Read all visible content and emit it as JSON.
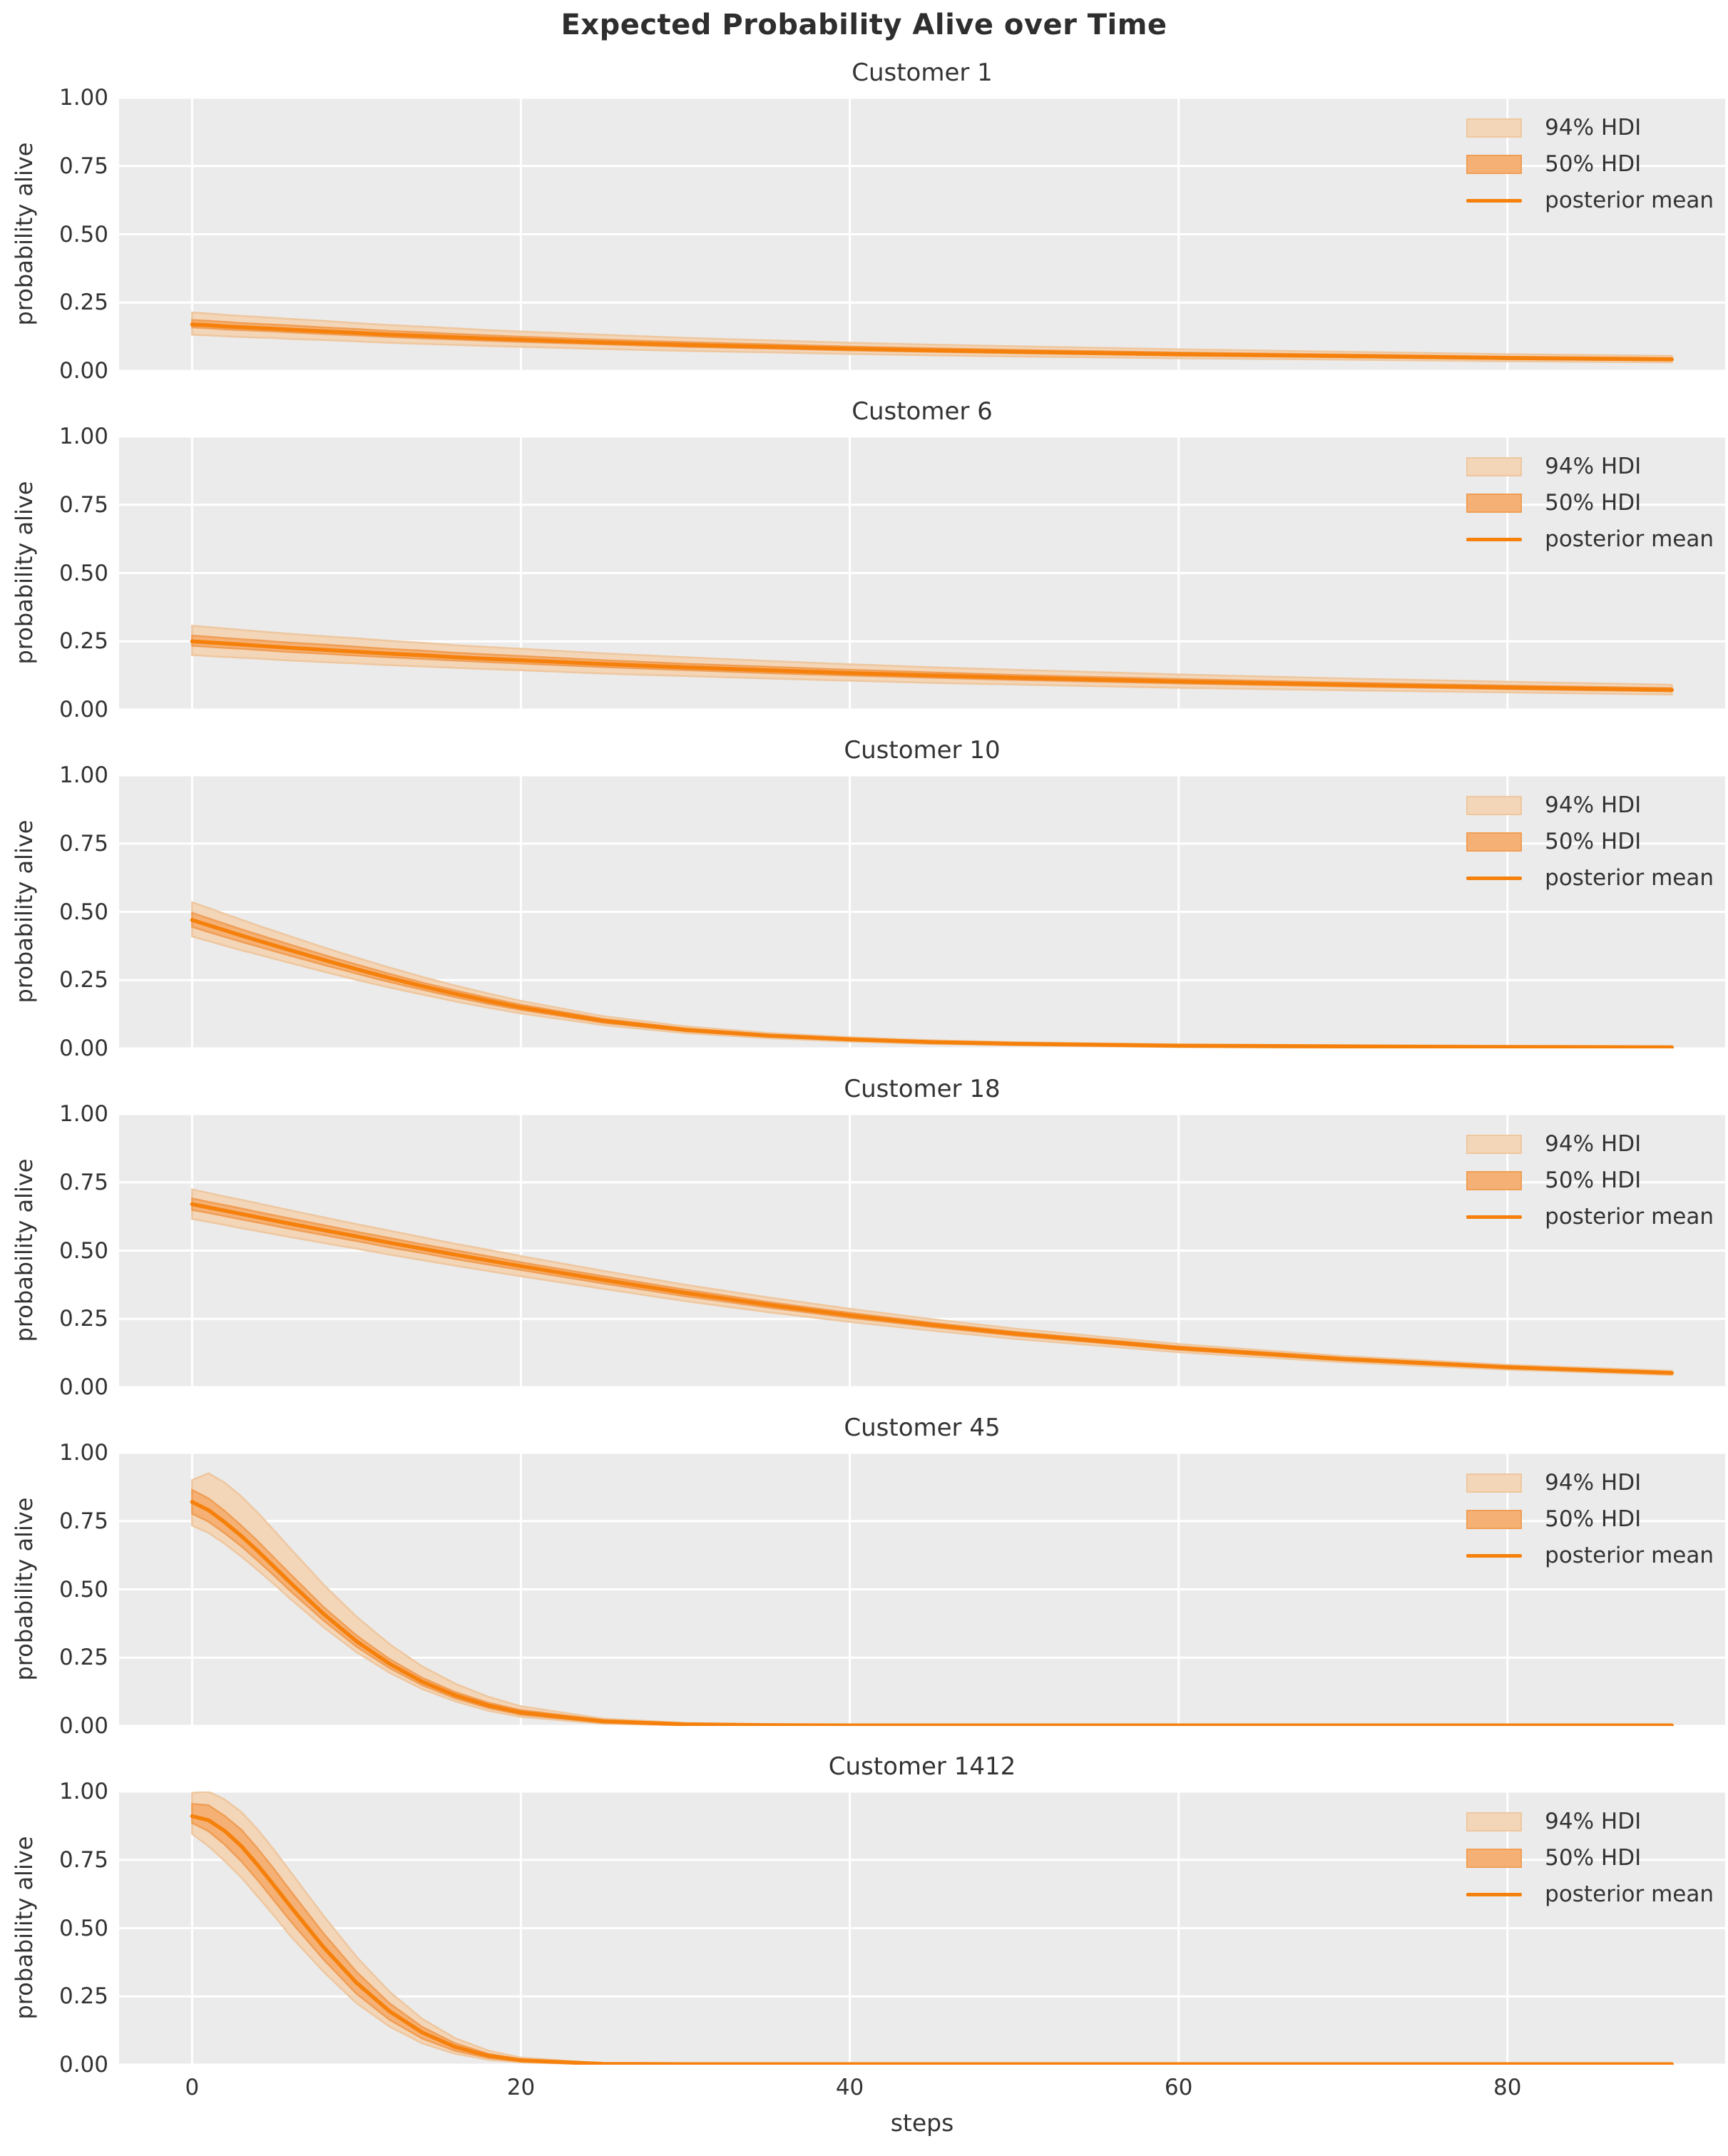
{
  "title": "Expected Probability Alive over Time",
  "axes": {
    "ylabel": "probability alive",
    "xlabel": "steps",
    "yticks": [
      "1.00",
      "0.75",
      "0.50",
      "0.25",
      "0.00"
    ],
    "ytick_values": [
      1.0,
      0.75,
      0.5,
      0.25,
      0.0
    ],
    "xticks": [
      "0",
      "20",
      "40",
      "60",
      "80"
    ],
    "xtick_values": [
      0,
      20,
      40,
      60,
      80
    ],
    "xlim": [
      -4.44,
      93.24
    ],
    "ylim": [
      0,
      1
    ],
    "grid": "on",
    "xticks_shown_on_panel": "last-only"
  },
  "legend": {
    "position": "top-right",
    "items": [
      {
        "label": "94% HDI",
        "type": "patch",
        "fill": "#f3d5b8",
        "edge": "#eec79f"
      },
      {
        "label": "50% HDI",
        "type": "patch",
        "fill": "#f5b175",
        "edge": "#f09e55"
      },
      {
        "label": "posterior mean",
        "type": "line",
        "color": "#f5810c"
      }
    ]
  },
  "colors": {
    "mean": "#f5810c",
    "band94_fill": "#f3d5b8",
    "band94_edge": "#eec79f",
    "band50_fill": "#f5b175",
    "band50_edge": "#f09e55",
    "plot_bg": "#ebebeb",
    "grid": "#ffffff",
    "text": "#333333",
    "title": "#2e2e2e"
  },
  "chart_data": [
    {
      "type": "line",
      "title": "Customer 1",
      "x": [
        0,
        1,
        2,
        3,
        4,
        5,
        6,
        8,
        10,
        12,
        14,
        16,
        18,
        20,
        25,
        30,
        35,
        40,
        45,
        50,
        60,
        70,
        80,
        90
      ],
      "mean": [
        0.17,
        0.167,
        0.163,
        0.16,
        0.157,
        0.154,
        0.151,
        0.145,
        0.139,
        0.133,
        0.128,
        0.123,
        0.118,
        0.114,
        0.104,
        0.095,
        0.088,
        0.081,
        0.075,
        0.07,
        0.061,
        0.054,
        0.047,
        0.042
      ],
      "hdi94_upper": [
        0.214,
        0.21,
        0.205,
        0.201,
        0.198,
        0.194,
        0.19,
        0.183,
        0.175,
        0.168,
        0.162,
        0.156,
        0.149,
        0.144,
        0.132,
        0.121,
        0.112,
        0.103,
        0.096,
        0.09,
        0.079,
        0.07,
        0.061,
        0.055
      ],
      "hdi94_lower": [
        0.132,
        0.13,
        0.127,
        0.124,
        0.122,
        0.12,
        0.117,
        0.113,
        0.108,
        0.103,
        0.099,
        0.095,
        0.091,
        0.088,
        0.08,
        0.073,
        0.068,
        0.062,
        0.057,
        0.053,
        0.046,
        0.041,
        0.035,
        0.031
      ],
      "hdi50_upper": [
        0.186,
        0.183,
        0.179,
        0.175,
        0.172,
        0.169,
        0.166,
        0.159,
        0.153,
        0.146,
        0.141,
        0.135,
        0.13,
        0.125,
        0.114,
        0.105,
        0.097,
        0.089,
        0.083,
        0.077,
        0.067,
        0.06,
        0.052,
        0.047
      ],
      "hdi50_lower": [
        0.159,
        0.156,
        0.152,
        0.149,
        0.147,
        0.144,
        0.141,
        0.135,
        0.13,
        0.124,
        0.119,
        0.115,
        0.11,
        0.106,
        0.097,
        0.088,
        0.082,
        0.075,
        0.07,
        0.065,
        0.056,
        0.05,
        0.043,
        0.038
      ]
    },
    {
      "type": "line",
      "title": "Customer 6",
      "x": [
        0,
        1,
        2,
        3,
        4,
        5,
        6,
        8,
        10,
        12,
        14,
        16,
        18,
        20,
        25,
        30,
        35,
        40,
        45,
        50,
        60,
        70,
        80,
        90
      ],
      "mean": [
        0.25,
        0.246,
        0.242,
        0.238,
        0.234,
        0.23,
        0.226,
        0.219,
        0.212,
        0.205,
        0.199,
        0.192,
        0.186,
        0.181,
        0.167,
        0.155,
        0.144,
        0.134,
        0.125,
        0.117,
        0.103,
        0.091,
        0.081,
        0.072
      ],
      "hdi94_upper": [
        0.307,
        0.302,
        0.297,
        0.292,
        0.287,
        0.282,
        0.277,
        0.269,
        0.261,
        0.252,
        0.245,
        0.236,
        0.229,
        0.223,
        0.206,
        0.192,
        0.178,
        0.166,
        0.155,
        0.146,
        0.129,
        0.114,
        0.102,
        0.091
      ],
      "hdi94_lower": [
        0.2,
        0.196,
        0.193,
        0.19,
        0.187,
        0.183,
        0.18,
        0.174,
        0.169,
        0.163,
        0.158,
        0.153,
        0.148,
        0.144,
        0.132,
        0.123,
        0.114,
        0.106,
        0.098,
        0.092,
        0.08,
        0.071,
        0.063,
        0.055
      ],
      "hdi50_upper": [
        0.271,
        0.267,
        0.262,
        0.258,
        0.254,
        0.249,
        0.245,
        0.238,
        0.23,
        0.222,
        0.216,
        0.208,
        0.202,
        0.196,
        0.181,
        0.168,
        0.157,
        0.146,
        0.136,
        0.127,
        0.112,
        0.099,
        0.088,
        0.079
      ],
      "hdi50_lower": [
        0.234,
        0.23,
        0.226,
        0.223,
        0.219,
        0.215,
        0.211,
        0.205,
        0.198,
        0.192,
        0.186,
        0.18,
        0.174,
        0.169,
        0.156,
        0.145,
        0.134,
        0.125,
        0.117,
        0.109,
        0.096,
        0.085,
        0.075,
        0.067
      ]
    },
    {
      "type": "line",
      "title": "Customer 10",
      "x": [
        0,
        1,
        2,
        3,
        4,
        5,
        6,
        8,
        10,
        12,
        14,
        16,
        18,
        20,
        25,
        30,
        35,
        40,
        45,
        50,
        60,
        70,
        80,
        90
      ],
      "mean": [
        0.47,
        0.451,
        0.432,
        0.413,
        0.395,
        0.377,
        0.359,
        0.324,
        0.29,
        0.258,
        0.228,
        0.2,
        0.174,
        0.15,
        0.101,
        0.068,
        0.047,
        0.033,
        0.023,
        0.017,
        0.01,
        0.007,
        0.005,
        0.004
      ],
      "hdi94_upper": [
        0.535,
        0.514,
        0.492,
        0.471,
        0.45,
        0.43,
        0.41,
        0.37,
        0.332,
        0.296,
        0.262,
        0.23,
        0.201,
        0.174,
        0.118,
        0.081,
        0.057,
        0.041,
        0.03,
        0.023,
        0.015,
        0.012,
        0.01,
        0.008
      ],
      "hdi94_lower": [
        0.41,
        0.393,
        0.376,
        0.359,
        0.344,
        0.328,
        0.312,
        0.281,
        0.251,
        0.223,
        0.197,
        0.172,
        0.149,
        0.128,
        0.085,
        0.056,
        0.037,
        0.025,
        0.016,
        0.011,
        0.005,
        0.002,
        0.001,
        0.001
      ],
      "hdi50_upper": [
        0.496,
        0.476,
        0.456,
        0.436,
        0.417,
        0.398,
        0.379,
        0.342,
        0.307,
        0.273,
        0.241,
        0.212,
        0.185,
        0.16,
        0.108,
        0.073,
        0.051,
        0.037,
        0.026,
        0.02,
        0.013,
        0.009,
        0.007,
        0.006
      ],
      "hdi50_lower": [
        0.445,
        0.426,
        0.408,
        0.39,
        0.373,
        0.356,
        0.339,
        0.306,
        0.274,
        0.243,
        0.215,
        0.188,
        0.163,
        0.141,
        0.094,
        0.063,
        0.043,
        0.029,
        0.02,
        0.014,
        0.008,
        0.005,
        0.003,
        0.002
      ]
    },
    {
      "type": "line",
      "title": "Customer 18",
      "x": [
        0,
        1,
        2,
        3,
        4,
        5,
        6,
        8,
        10,
        12,
        14,
        16,
        18,
        20,
        25,
        30,
        35,
        40,
        45,
        50,
        60,
        70,
        80,
        90
      ],
      "mean": [
        0.67,
        0.658,
        0.646,
        0.634,
        0.622,
        0.61,
        0.598,
        0.575,
        0.552,
        0.529,
        0.507,
        0.485,
        0.464,
        0.443,
        0.393,
        0.345,
        0.302,
        0.263,
        0.228,
        0.196,
        0.143,
        0.103,
        0.073,
        0.052
      ],
      "hdi94_upper": [
        0.724,
        0.711,
        0.698,
        0.686,
        0.673,
        0.66,
        0.647,
        0.622,
        0.597,
        0.573,
        0.549,
        0.525,
        0.503,
        0.48,
        0.426,
        0.375,
        0.329,
        0.287,
        0.249,
        0.215,
        0.158,
        0.114,
        0.082,
        0.06
      ],
      "hdi94_lower": [
        0.616,
        0.605,
        0.594,
        0.582,
        0.571,
        0.56,
        0.549,
        0.528,
        0.507,
        0.485,
        0.465,
        0.445,
        0.425,
        0.406,
        0.36,
        0.315,
        0.275,
        0.239,
        0.207,
        0.177,
        0.128,
        0.091,
        0.064,
        0.044
      ],
      "hdi50_upper": [
        0.691,
        0.678,
        0.666,
        0.654,
        0.641,
        0.629,
        0.617,
        0.593,
        0.569,
        0.546,
        0.523,
        0.501,
        0.479,
        0.457,
        0.406,
        0.357,
        0.312,
        0.272,
        0.236,
        0.203,
        0.149,
        0.108,
        0.077,
        0.055
      ],
      "hdi50_lower": [
        0.649,
        0.638,
        0.626,
        0.614,
        0.603,
        0.591,
        0.579,
        0.557,
        0.535,
        0.512,
        0.491,
        0.469,
        0.449,
        0.429,
        0.38,
        0.333,
        0.292,
        0.254,
        0.22,
        0.189,
        0.137,
        0.098,
        0.069,
        0.049
      ]
    },
    {
      "type": "line",
      "title": "Customer 45",
      "x": [
        0,
        1,
        2,
        3,
        4,
        5,
        6,
        8,
        10,
        12,
        14,
        16,
        18,
        20,
        25,
        30,
        35,
        40,
        45,
        50,
        60,
        70,
        80,
        90
      ],
      "mean": [
        0.82,
        0.79,
        0.745,
        0.695,
        0.64,
        0.582,
        0.523,
        0.41,
        0.31,
        0.228,
        0.162,
        0.112,
        0.075,
        0.049,
        0.017,
        0.006,
        0.003,
        0.002,
        0.002,
        0.002,
        0.002,
        0.002,
        0.002,
        0.002
      ],
      "hdi94_upper": [
        0.9,
        0.925,
        0.89,
        0.84,
        0.78,
        0.715,
        0.648,
        0.517,
        0.4,
        0.3,
        0.218,
        0.155,
        0.107,
        0.072,
        0.027,
        0.011,
        0.005,
        0.003,
        0.003,
        0.003,
        0.003,
        0.003,
        0.003,
        0.003
      ],
      "hdi94_lower": [
        0.734,
        0.707,
        0.666,
        0.62,
        0.57,
        0.518,
        0.464,
        0.361,
        0.27,
        0.195,
        0.135,
        0.09,
        0.056,
        0.033,
        0.008,
        0.002,
        0.001,
        0.001,
        0.001,
        0.001,
        0.001,
        0.001,
        0.001,
        0.001
      ],
      "hdi50_upper": [
        0.864,
        0.833,
        0.786,
        0.733,
        0.676,
        0.615,
        0.554,
        0.435,
        0.331,
        0.245,
        0.176,
        0.124,
        0.085,
        0.058,
        0.022,
        0.008,
        0.004,
        0.002,
        0.002,
        0.002,
        0.002,
        0.002,
        0.002,
        0.002
      ],
      "hdi50_lower": [
        0.777,
        0.748,
        0.705,
        0.658,
        0.605,
        0.55,
        0.493,
        0.386,
        0.29,
        0.212,
        0.149,
        0.101,
        0.066,
        0.041,
        0.012,
        0.003,
        0.002,
        0.001,
        0.001,
        0.001,
        0.001,
        0.001,
        0.001,
        0.001
      ]
    },
    {
      "type": "line",
      "title": "Customer 1412",
      "x": [
        0,
        1,
        2,
        3,
        4,
        5,
        6,
        8,
        10,
        12,
        14,
        16,
        18,
        20,
        25,
        30,
        35,
        40,
        45,
        50,
        60,
        70,
        80,
        90
      ],
      "mean": [
        0.91,
        0.895,
        0.855,
        0.8,
        0.73,
        0.655,
        0.578,
        0.43,
        0.3,
        0.196,
        0.118,
        0.065,
        0.033,
        0.016,
        0.003,
        0.002,
        0.002,
        0.002,
        0.002,
        0.002,
        0.002,
        0.002,
        0.002,
        0.002
      ],
      "hdi94_upper": [
        0.995,
        1.0,
        0.97,
        0.925,
        0.86,
        0.785,
        0.705,
        0.545,
        0.395,
        0.268,
        0.168,
        0.097,
        0.052,
        0.026,
        0.005,
        0.003,
        0.003,
        0.003,
        0.003,
        0.003,
        0.003,
        0.003,
        0.003,
        0.003
      ],
      "hdi94_lower": [
        0.845,
        0.8,
        0.745,
        0.685,
        0.615,
        0.545,
        0.47,
        0.34,
        0.225,
        0.14,
        0.078,
        0.04,
        0.018,
        0.008,
        0.001,
        0.001,
        0.001,
        0.001,
        0.001,
        0.001,
        0.001,
        0.001,
        0.001,
        0.001
      ],
      "hdi50_upper": [
        0.955,
        0.95,
        0.91,
        0.86,
        0.79,
        0.715,
        0.635,
        0.48,
        0.34,
        0.225,
        0.138,
        0.078,
        0.04,
        0.02,
        0.004,
        0.002,
        0.002,
        0.002,
        0.002,
        0.002,
        0.002,
        0.002,
        0.002,
        0.002
      ],
      "hdi50_lower": [
        0.885,
        0.855,
        0.805,
        0.745,
        0.675,
        0.6,
        0.525,
        0.385,
        0.26,
        0.165,
        0.096,
        0.051,
        0.025,
        0.012,
        0.002,
        0.001,
        0.001,
        0.001,
        0.001,
        0.001,
        0.001,
        0.001,
        0.001,
        0.001
      ]
    }
  ]
}
